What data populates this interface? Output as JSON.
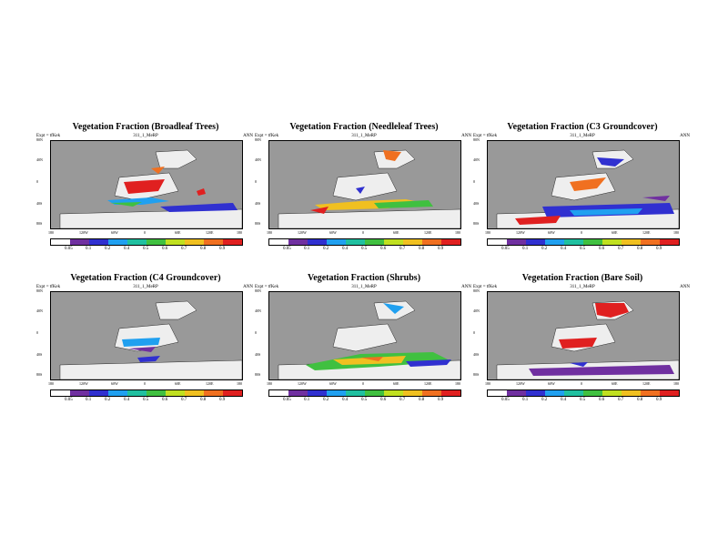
{
  "panels": [
    {
      "title": "Vegetation Fraction (Broadleaf Trees)",
      "expt": "Expt = tfKek",
      "subtitle": "311_1_MeRP",
      "season": "ANN",
      "ylabels": [
        "80N",
        "40N",
        "0",
        "40S",
        "80S"
      ],
      "xlabels": [
        "180",
        "120W",
        "60W",
        "0",
        "60E",
        "120E",
        "180"
      ],
      "cbar_ticks": [
        "0.05",
        "0.1",
        "0.2",
        "0.4",
        "0.5",
        "0.6",
        "0.7",
        "0.8",
        "0.9"
      ]
    },
    {
      "title": "Vegetation Fraction (Needleleaf Trees)",
      "expt": "Expt = tfKek",
      "subtitle": "311_1_MeRP",
      "season": "ANN",
      "ylabels": [
        "80N",
        "40N",
        "0",
        "40S",
        "80S"
      ],
      "xlabels": [
        "180",
        "120W",
        "60W",
        "0",
        "60E",
        "120E",
        "180"
      ],
      "cbar_ticks": [
        "0.05",
        "0.1",
        "0.2",
        "0.4",
        "0.5",
        "0.6",
        "0.7",
        "0.8",
        "0.9"
      ]
    },
    {
      "title": "Vegetation Fraction (C3 Groundcover)",
      "expt": "Expt = tfKek",
      "subtitle": "311_1_MeRP",
      "season": "ANN",
      "ylabels": [
        "80N",
        "40N",
        "0",
        "40S",
        "80S"
      ],
      "xlabels": [
        "180",
        "120W",
        "60W",
        "0",
        "60E",
        "120E",
        "180"
      ],
      "cbar_ticks": [
        "0.05",
        "0.1",
        "0.2",
        "0.4",
        "0.5",
        "0.6",
        "0.7",
        "0.8",
        "0.9"
      ]
    },
    {
      "title": "Vegetation Fraction (C4 Groundcover)",
      "expt": "Expt = tfKek",
      "subtitle": "311_1_MeRP",
      "season": "ANN",
      "ylabels": [
        "80N",
        "40N",
        "0",
        "40S",
        "80S"
      ],
      "xlabels": [
        "180",
        "120W",
        "60W",
        "0",
        "60E",
        "120E",
        "180"
      ],
      "cbar_ticks": [
        "0.05",
        "0.1",
        "0.2",
        "0.4",
        "0.5",
        "0.6",
        "0.7",
        "0.8",
        "0.9"
      ]
    },
    {
      "title": "Vegetation Fraction (Shrubs)",
      "expt": "Expt = tfKek",
      "subtitle": "311_1_MeRP",
      "season": "ANN",
      "ylabels": [
        "80N",
        "40N",
        "0",
        "40S",
        "80S"
      ],
      "xlabels": [
        "180",
        "120W",
        "60W",
        "0",
        "60E",
        "120E",
        "180"
      ],
      "cbar_ticks": [
        "0.05",
        "0.1",
        "0.2",
        "0.4",
        "0.5",
        "0.6",
        "0.7",
        "0.8",
        "0.9"
      ]
    },
    {
      "title": "Vegetation Fraction (Bare Soil)",
      "expt": "Expt = tfKek",
      "subtitle": "311_1_MeRP",
      "season": "ANN",
      "ylabels": [
        "80N",
        "40N",
        "0",
        "40S",
        "80S"
      ],
      "xlabels": [
        "180",
        "120W",
        "60W",
        "0",
        "60E",
        "120E",
        "180"
      ],
      "cbar_ticks": [
        "0.05",
        "0.1",
        "0.2",
        "0.4",
        "0.5",
        "0.6",
        "0.7",
        "0.8",
        "0.9"
      ]
    }
  ],
  "colors": {
    "ocean": "#999999",
    "land": "#eeeeee",
    "scale": [
      "#ffffff",
      "#7030a0",
      "#3030d0",
      "#20a0f0",
      "#20c0a0",
      "#40c040",
      "#c0e020",
      "#f0c020",
      "#f07020",
      "#e02020"
    ]
  }
}
